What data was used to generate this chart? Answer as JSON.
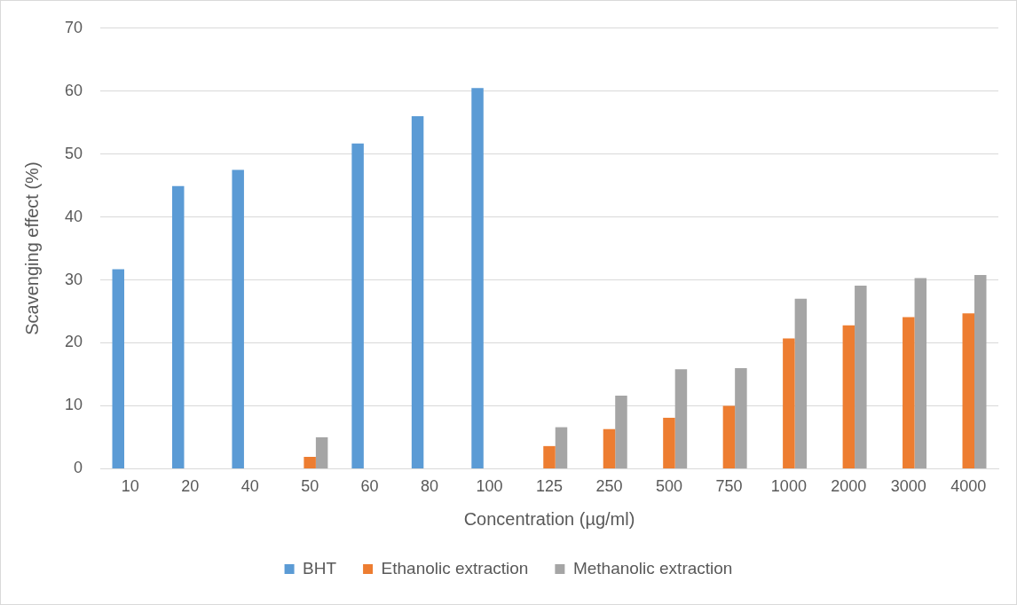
{
  "chart_data": {
    "type": "bar",
    "xlabel": "Concentration (µg/ml)",
    "ylabel": "Scavenging effect (%)",
    "categories": [
      "10",
      "20",
      "40",
      "50",
      "60",
      "80",
      "100",
      "125",
      "250",
      "500",
      "750",
      "1000",
      "2000",
      "3000",
      "4000"
    ],
    "series": [
      {
        "name": "BHT",
        "color": "#5b9bd5",
        "values": [
          31.7,
          44.9,
          47.5,
          null,
          51.7,
          56.0,
          60.5,
          null,
          null,
          null,
          null,
          null,
          null,
          null,
          null
        ]
      },
      {
        "name": "Ethanolic extraction",
        "color": "#ed7d31",
        "values": [
          null,
          null,
          null,
          1.9,
          null,
          null,
          null,
          3.6,
          6.3,
          8.1,
          10.0,
          20.7,
          22.8,
          24.1,
          24.7
        ]
      },
      {
        "name": "Methanolic extraction",
        "color": "#a5a5a5",
        "values": [
          null,
          null,
          null,
          5.0,
          null,
          null,
          null,
          6.6,
          11.6,
          15.8,
          16.0,
          27.0,
          29.1,
          30.3,
          30.8
        ]
      }
    ],
    "ylim": [
      0,
      70
    ],
    "yticks": [
      0,
      10,
      20,
      30,
      40,
      50,
      60,
      70
    ],
    "grid": "y",
    "legend": "bottom"
  }
}
